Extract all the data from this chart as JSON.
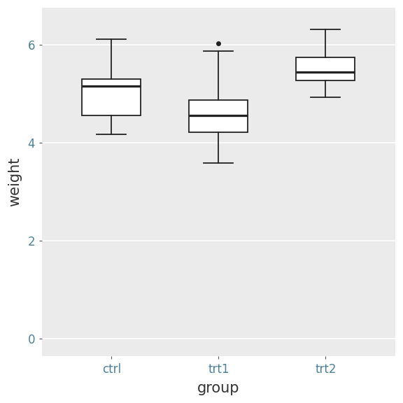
{
  "title": "",
  "xlabel": "group",
  "ylabel": "weight",
  "panel_background": "#EBEBEB",
  "figure_background": "#FFFFFF",
  "grid_color": "#FFFFFF",
  "categories": [
    "ctrl",
    "trt1",
    "trt2"
  ],
  "box_stats": {
    "ctrl": {
      "whislo": 4.17,
      "q1": 4.55,
      "med": 5.155,
      "q3": 5.2925,
      "whishi": 6.11,
      "fliers": []
    },
    "trt1": {
      "whislo": 3.59,
      "q1": 4.207,
      "med": 4.55,
      "q3": 4.87,
      "whishi": 5.87,
      "fliers": [
        6.03
      ]
    },
    "trt2": {
      "whislo": 4.92,
      "q1": 5.2675,
      "med": 5.435,
      "q3": 5.735,
      "whishi": 6.31,
      "fliers": []
    }
  },
  "ylim": [
    -0.35,
    6.75
  ],
  "yticks": [
    0,
    2,
    4,
    6
  ],
  "box_width": 0.55,
  "linewidth": 1.3,
  "flier_marker": "o",
  "flier_size": 4,
  "flier_color": "#222222",
  "box_facecolor": "white",
  "box_edgecolor": "#222222",
  "median_color": "#222222",
  "whisker_color": "#222222",
  "cap_color": "#222222",
  "xlabel_fontsize": 15,
  "ylabel_fontsize": 15,
  "tick_fontsize": 12,
  "tick_color": "#4E8098",
  "label_color": "#333333",
  "figsize": [
    5.76,
    5.76
  ],
  "dpi": 100
}
